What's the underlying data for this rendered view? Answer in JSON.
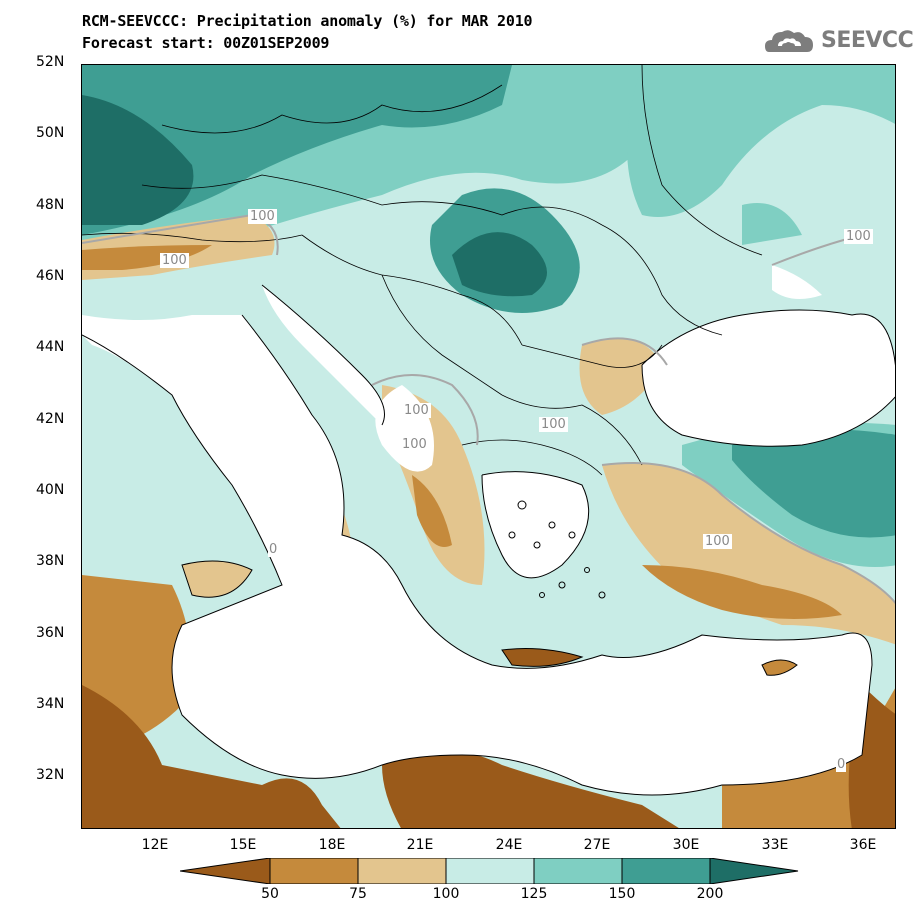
{
  "header": {
    "title": "RCM-SEEVCCC: Precipitation anomaly (%) for MAR 2010",
    "subtitle": "Forecast start: 00Z01SEP2009"
  },
  "logo": {
    "text": "SEEVCCC"
  },
  "map": {
    "lat_labels": [
      "52N",
      "50N",
      "48N",
      "46N",
      "44N",
      "42N",
      "40N",
      "38N",
      "36N",
      "34N",
      "32N"
    ],
    "lon_labels": [
      "12E",
      "15E",
      "18E",
      "21E",
      "24E",
      "27E",
      "30E",
      "33E",
      "36E"
    ],
    "contour_labels": [
      "100",
      "100",
      "100",
      "100",
      "100",
      "100",
      "100",
      "0",
      "0"
    ]
  },
  "colorbar": {
    "levels": [
      "50",
      "75",
      "100",
      "125",
      "150",
      "200"
    ],
    "colors": [
      "#9a5a1a",
      "#c58a3c",
      "#e3c58e",
      "#c8ece6",
      "#7fcfc2",
      "#3f9e93",
      "#1e6e66"
    ]
  },
  "colors": {
    "very_dry": "#9a5a1a",
    "dry": "#c58a3c",
    "slightly_dry": "#e3c58e",
    "slightly_wet": "#c8ece6",
    "wet": "#7fcfc2",
    "very_wet": "#3f9e93",
    "extreme_wet": "#1e6e66",
    "contour_100": "#a8a8a8"
  }
}
